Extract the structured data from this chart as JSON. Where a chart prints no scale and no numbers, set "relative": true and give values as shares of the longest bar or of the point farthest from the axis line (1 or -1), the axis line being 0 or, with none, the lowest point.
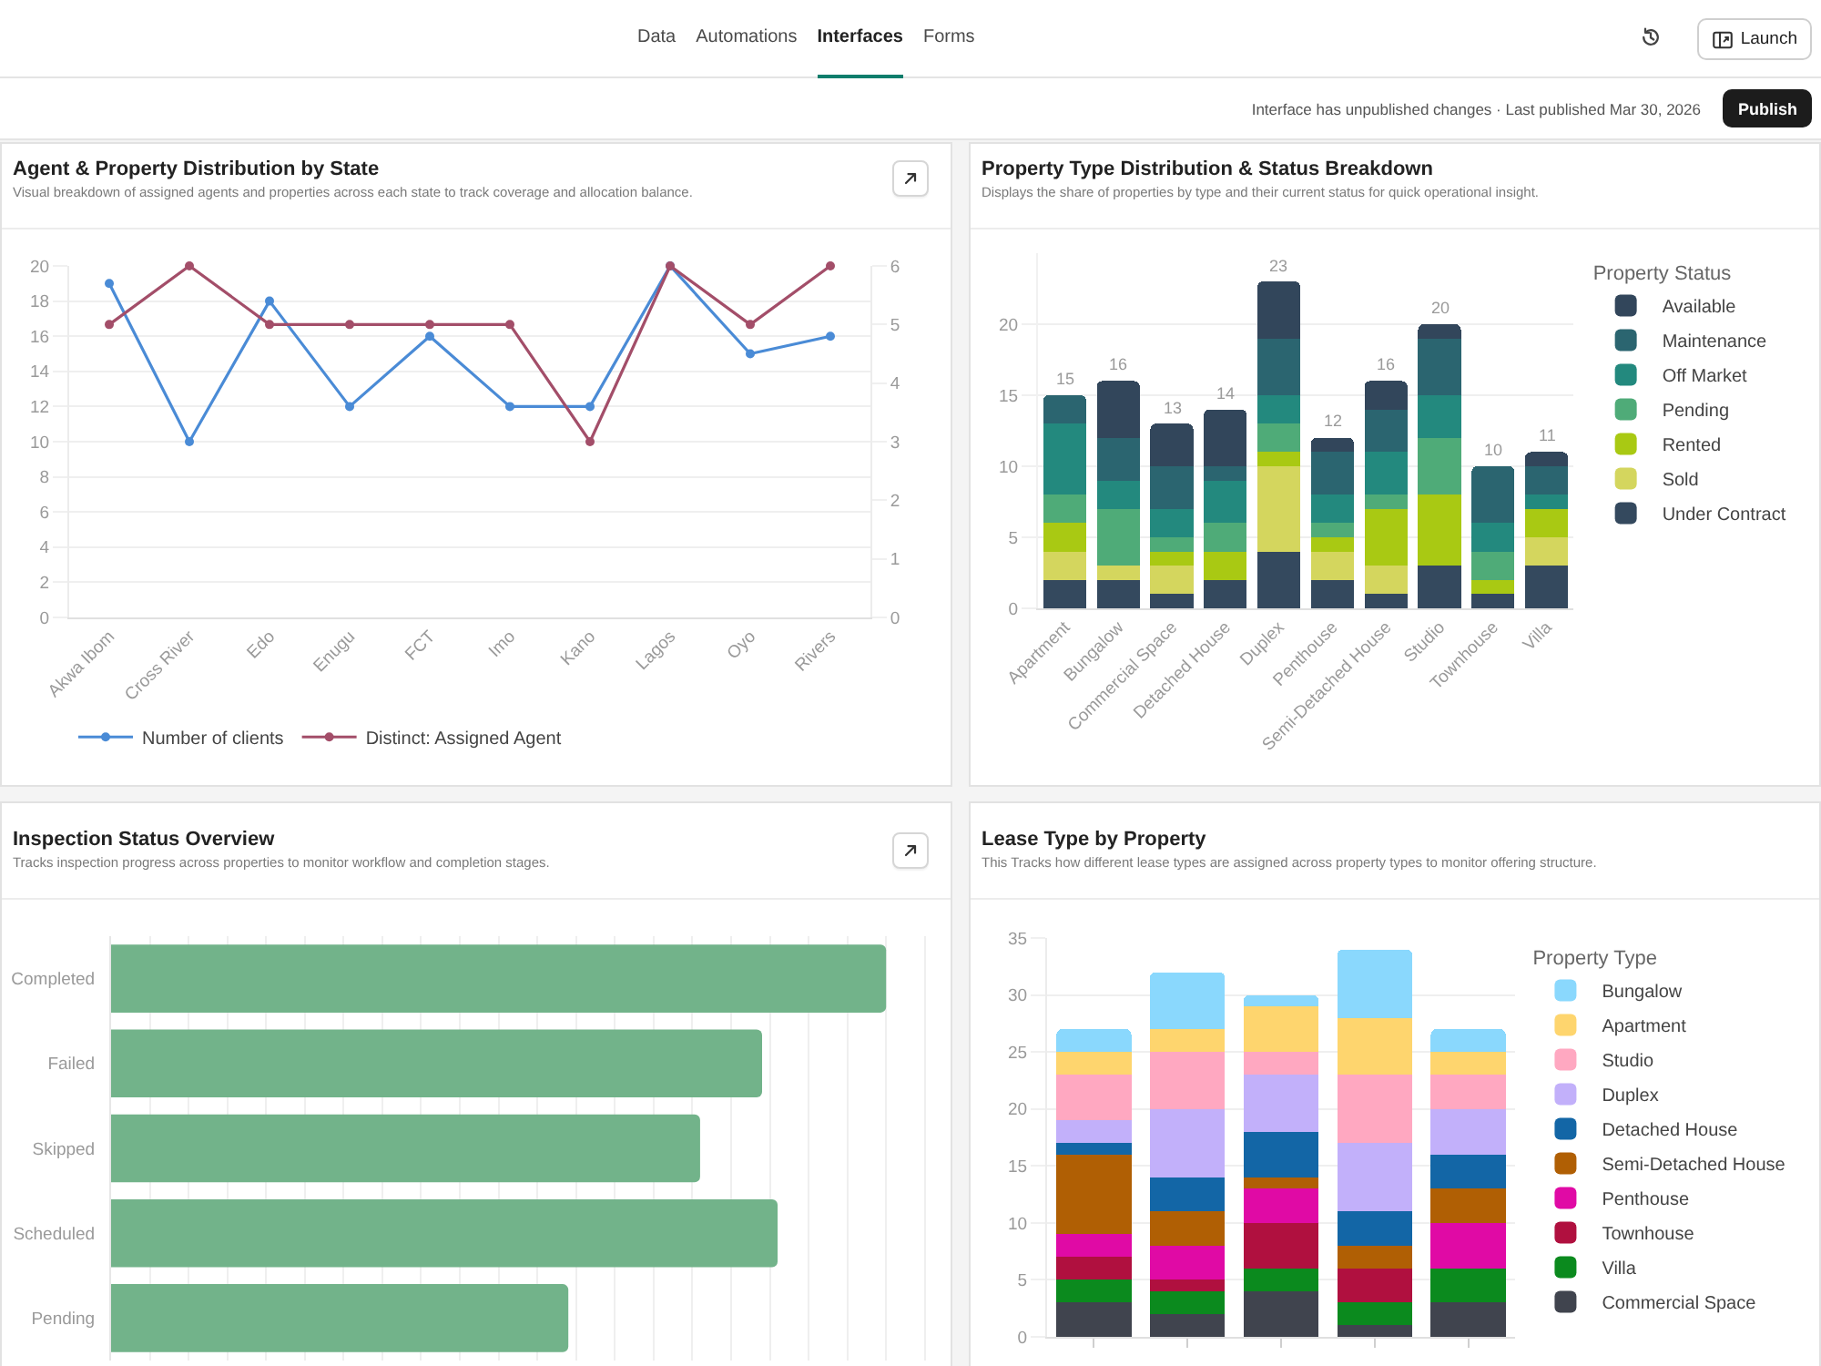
{
  "chart_data": [
    {
      "type": "other",
      "annotations": [
        "Data",
        "Automations",
        "Interfaces",
        "Forms",
        "Interface has unpublished changes · Last published Mar 30, 2026",
        "Launch",
        "Publish"
      ]
    },
    {
      "type": "line",
      "title": "Agent & Property Distribution by State",
      "subtitle": "Visual breakdown of assigned agents and properties across each state to track coverage and allocation balance.",
      "categories": [
        "Akwa Ibom",
        "Cross River",
        "Edo",
        "Enugu",
        "FCT",
        "Imo",
        "Kano",
        "Lagos",
        "Oyo",
        "Rivers"
      ],
      "series": [
        {
          "name": "Number of clients",
          "color": "#4a8bd6",
          "values": [
            19,
            10,
            18,
            12,
            16,
            12,
            12,
            20,
            15,
            16
          ]
        },
        {
          "name": "Distinct: Assigned Agent",
          "color": "#a34e69",
          "values": [
            5,
            6,
            5,
            5,
            5,
            5,
            3,
            6,
            5,
            6
          ],
          "axis": "y2"
        }
      ],
      "ylim": [
        0,
        20
      ],
      "yticks": [
        0,
        2,
        4,
        6,
        8,
        10,
        12,
        14,
        16,
        18,
        20
      ],
      "y2lim": [
        0,
        6
      ],
      "y2ticks": [
        0,
        1,
        2,
        3,
        4,
        5,
        6
      ],
      "grid": "y",
      "legend": "bottom",
      "marker": "circle",
      "line_style": "solid"
    },
    {
      "type": "bar",
      "stacked": true,
      "title": "Property Type Distribution & Status Breakdown",
      "subtitle": "Displays the share of properties by type and their current status for quick operational insight.",
      "categories": [
        "Apartment",
        "Bungalow",
        "Commercial Space",
        "Detached House",
        "Duplex",
        "Penthouse",
        "Semi-Detached House",
        "Studio",
        "Townhouse",
        "Villa"
      ],
      "series": [
        {
          "name": "Under Contract",
          "color": "#34495e",
          "values": [
            2,
            2,
            1,
            2,
            4,
            2,
            1,
            3,
            1,
            3
          ]
        },
        {
          "name": "Sold",
          "color": "#d4d65e",
          "values": [
            2,
            1,
            2,
            0,
            6,
            2,
            2,
            0,
            0,
            2
          ]
        },
        {
          "name": "Rented",
          "color": "#a9c913",
          "values": [
            2,
            0,
            1,
            2,
            1,
            1,
            4,
            5,
            1,
            2
          ]
        },
        {
          "name": "Pending",
          "color": "#4fab78",
          "values": [
            2,
            4,
            1,
            2,
            2,
            1,
            1,
            4,
            2,
            0
          ]
        },
        {
          "name": "Off Market",
          "color": "#23897e",
          "values": [
            5,
            2,
            2,
            3,
            2,
            2,
            3,
            3,
            2,
            1
          ]
        },
        {
          "name": "Maintenance",
          "color": "#2b6570",
          "values": [
            2,
            3,
            3,
            1,
            4,
            3,
            3,
            4,
            4,
            2
          ]
        },
        {
          "name": "Available",
          "color": "#32465b",
          "values": [
            0,
            4,
            3,
            4,
            4,
            1,
            2,
            1,
            0,
            1
          ]
        }
      ],
      "ylim": [
        0,
        25
      ],
      "yticks": [
        0,
        5,
        10,
        15,
        20
      ],
      "grid": "y",
      "legend": "right",
      "legend_title": "Property Status",
      "totals": [
        "15",
        "16",
        "13",
        "14",
        "23",
        "12",
        "16",
        "20",
        "10",
        "11"
      ]
    },
    {
      "type": "bar",
      "orientation": "horizontal",
      "relative": true,
      "title": "Inspection Status Overview",
      "subtitle": "Tracks inspection progress across properties to monitor workflow and completion stages.",
      "categories": [
        "Completed",
        "Failed",
        "Skipped",
        "Scheduled",
        "Pending"
      ],
      "values": [
        1,
        0.84,
        0.76,
        0.86,
        0.59
      ],
      "color": "#72b38a",
      "grid": "x"
    },
    {
      "type": "bar",
      "stacked": true,
      "title": "Lease Type by Property",
      "subtitle": "This Tracks how different lease types are assigned across property types to monitor offering structure.",
      "categories": [
        null,
        null,
        null,
        null,
        null
      ],
      "series": [
        {
          "name": "Commercial Space",
          "color": "#40444e",
          "values": [
            3,
            2,
            4,
            1,
            3
          ]
        },
        {
          "name": "Villa",
          "color": "#0b8a1e",
          "values": [
            2,
            2,
            2,
            2,
            3
          ]
        },
        {
          "name": "Townhouse",
          "color": "#b0103f",
          "values": [
            2,
            1,
            4,
            3,
            0
          ]
        },
        {
          "name": "Penthouse",
          "color": "#e00aa5",
          "values": [
            2,
            3,
            3,
            0,
            4
          ]
        },
        {
          "name": "Semi-Detached House",
          "color": "#b05f04",
          "values": [
            7,
            3,
            1,
            2,
            3
          ]
        },
        {
          "name": "Detached House",
          "color": "#1366a6",
          "values": [
            1,
            3,
            4,
            3,
            3
          ]
        },
        {
          "name": "Duplex",
          "color": "#c2b0fa",
          "values": [
            2,
            6,
            5,
            6,
            4
          ]
        },
        {
          "name": "Studio",
          "color": "#ffa8c1",
          "values": [
            4,
            5,
            2,
            6,
            3
          ]
        },
        {
          "name": "Apartment",
          "color": "#fed56e",
          "values": [
            2,
            2,
            4,
            5,
            2
          ]
        },
        {
          "name": "Bungalow",
          "color": "#8ad8fd",
          "values": [
            2,
            5,
            1,
            6,
            2
          ]
        }
      ],
      "ylim": [
        0,
        35
      ],
      "yticks": [
        0,
        5,
        10,
        15,
        20,
        25,
        30,
        35
      ],
      "grid": "y",
      "legend": "right",
      "legend_title": "Property Type"
    }
  ]
}
